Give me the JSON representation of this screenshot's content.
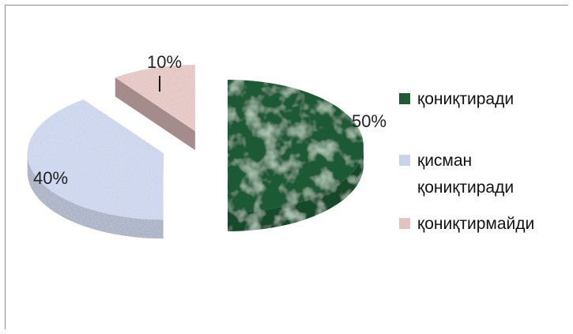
{
  "chart_data": {
    "type": "pie",
    "title": "",
    "style": "3d-exploded",
    "slices": [
      {
        "label": "қониқтиради",
        "value": 50,
        "display": "50%",
        "color": "#1f5a35"
      },
      {
        "label": "қисман қониқтиради",
        "label_lines": [
          "қисман",
          "қониқтиради"
        ],
        "value": 40,
        "display": "40%",
        "color": "#c9d3ec"
      },
      {
        "label": "қониқтирмайди",
        "value": 10,
        "display": "10%",
        "color": "#e3c3c1"
      }
    ],
    "legend": {
      "position": "right"
    }
  }
}
